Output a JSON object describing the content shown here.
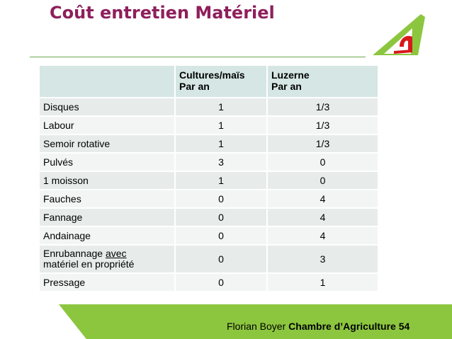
{
  "slide": {
    "title": "Coût entretien Matériel"
  },
  "logo": {
    "icon": "chambre-agriculture-logo-icon",
    "colors": {
      "green": "#8cc63f",
      "red": "#d7191c"
    }
  },
  "table": {
    "headers": {
      "col1": "",
      "col2_line1": "Cultures/maïs",
      "col2_line2": "Par an",
      "col3_line1": "Luzerne",
      "col3_line2": "Par an"
    },
    "rows": [
      {
        "label": "Disques",
        "cultures": "1",
        "luzerne": "1/3"
      },
      {
        "label": "Labour",
        "cultures": "1",
        "luzerne": "1/3"
      },
      {
        "label": "Semoir rotative",
        "cultures": "1",
        "luzerne": "1/3"
      },
      {
        "label": "Pulvés",
        "cultures": "3",
        "luzerne": "0"
      },
      {
        "label": "1 moisson",
        "cultures": "1",
        "luzerne": "0"
      },
      {
        "label": "Fauches",
        "cultures": "0",
        "luzerne": "4"
      },
      {
        "label": "Fannage",
        "cultures": "0",
        "luzerne": "4"
      },
      {
        "label": "Andainage",
        "cultures": "0",
        "luzerne": "4"
      },
      {
        "label_part1": "Enrubannage ",
        "label_underlined": "avec",
        "label_part2": "matériel en propriété",
        "cultures": "0",
        "luzerne": "3"
      },
      {
        "label": "Pressage",
        "cultures": "0",
        "luzerne": "1"
      }
    ]
  },
  "footer": {
    "author": "Florian Boyer",
    "organization": "Chambre d’Agriculture 54"
  },
  "colors": {
    "title": "#8e1f5c",
    "accent_green": "#8cc63f",
    "header_bg": "#d5e6e4",
    "row_bg": "#e7eceb",
    "row_alt_bg": "#f2f5f4"
  }
}
